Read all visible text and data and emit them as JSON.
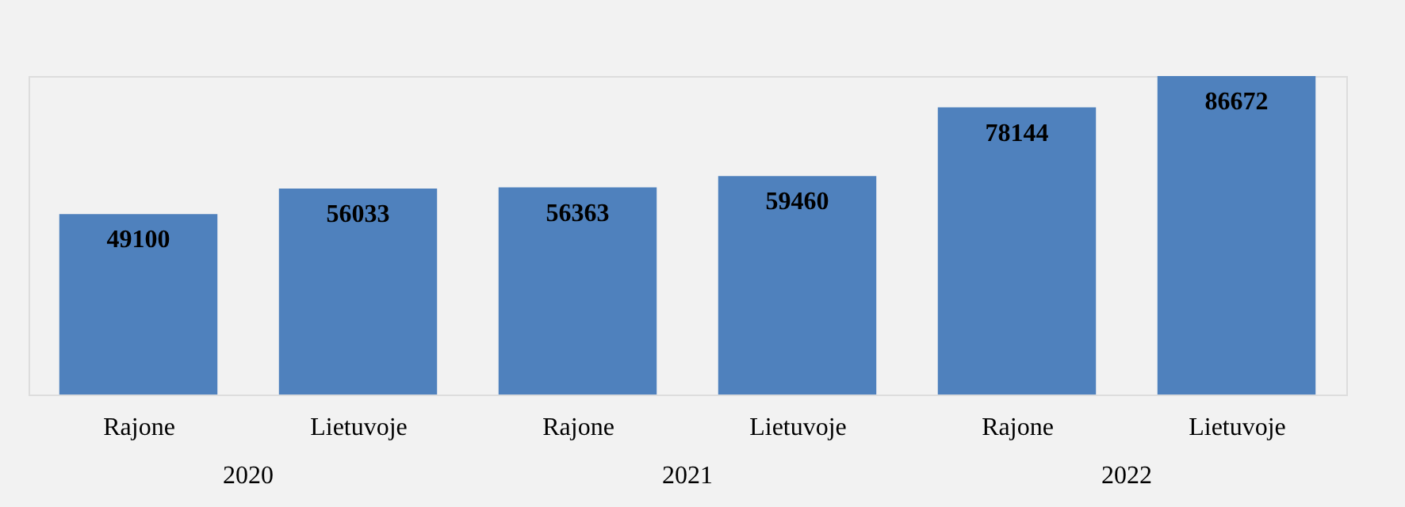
{
  "chart_data": {
    "type": "bar",
    "categories": [
      "Rajone",
      "Lietuvoje",
      "Rajone",
      "Lietuvoje",
      "Rajone",
      "Lietuvoje"
    ],
    "values": [
      49100,
      56033,
      56363,
      59460,
      78144,
      86672
    ],
    "color": "#4f81bd",
    "data_labels": true,
    "grid": false,
    "annotations": [
      "2020",
      "2021",
      "2022"
    ]
  }
}
